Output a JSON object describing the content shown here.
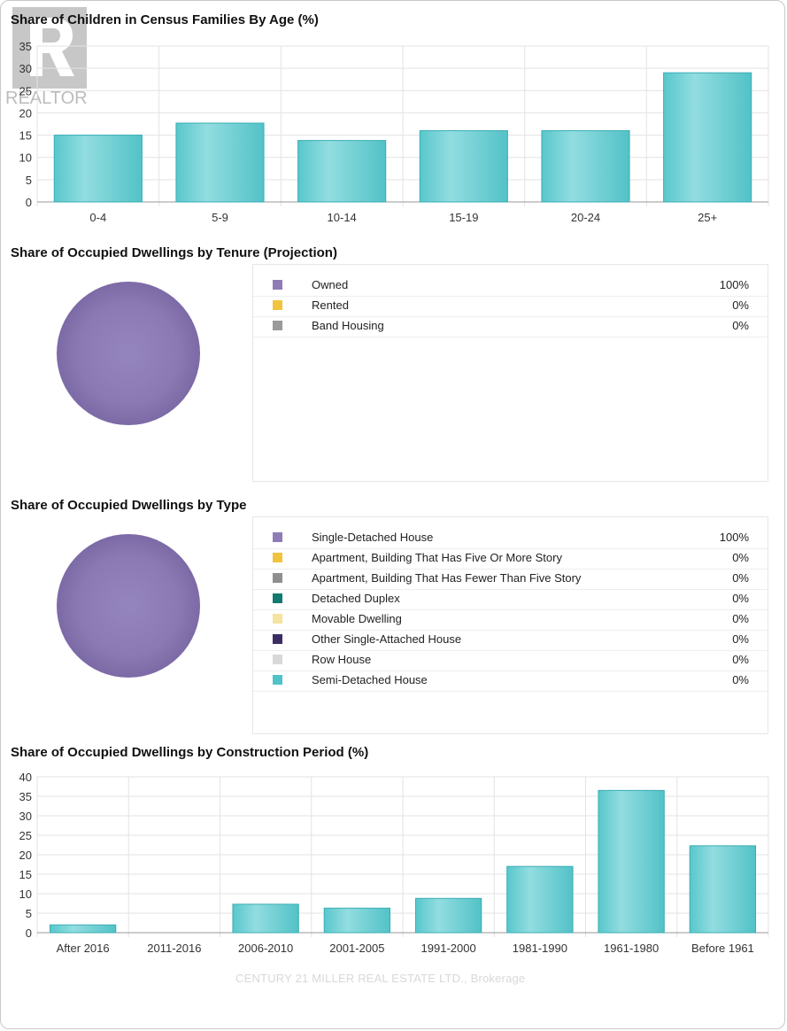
{
  "sections": {
    "age": {
      "title": "Share of Children in Census Families By Age (%)"
    },
    "tenure": {
      "title": "Share of Occupied Dwellings by Tenure (Projection)",
      "legend": [
        {
          "label": "Owned",
          "value": "100%",
          "color": "#8e7cb6"
        },
        {
          "label": "Rented",
          "value": "0%",
          "color": "#f2c43d"
        },
        {
          "label": "Band Housing",
          "value": "0%",
          "color": "#9a9a9a"
        }
      ]
    },
    "type": {
      "title": "Share of Occupied Dwellings by Type",
      "legend": [
        {
          "label": "Single-Detached House",
          "value": "100%",
          "color": "#8e7cb6"
        },
        {
          "label": "Apartment, Building That Has Five Or More Story",
          "value": "0%",
          "color": "#f2c43d"
        },
        {
          "label": "Apartment, Building That Has Fewer Than Five Story",
          "value": "0%",
          "color": "#8f8f8f"
        },
        {
          "label": "Detached Duplex",
          "value": "0%",
          "color": "#127a70"
        },
        {
          "label": "Movable Dwelling",
          "value": "0%",
          "color": "#f6e3a0"
        },
        {
          "label": "Other Single-Attached House",
          "value": "0%",
          "color": "#3b2d64"
        },
        {
          "label": "Row House",
          "value": "0%",
          "color": "#d8d8d8"
        },
        {
          "label": "Semi-Detached House",
          "value": "0%",
          "color": "#4fc3c8"
        }
      ]
    },
    "construction": {
      "title": "Share of Occupied Dwellings by Construction Period (%)"
    }
  },
  "watermark": {
    "logo_text": "REALTOR",
    "footer": "CENTURY 21 MILLER REAL ESTATE LTD., Brokerage"
  },
  "chart_data": [
    {
      "type": "bar",
      "title": "Share of Children in Census Families By Age (%)",
      "categories": [
        "0-4",
        "5-9",
        "10-14",
        "15-19",
        "20-24",
        "25+"
      ],
      "values": [
        15,
        17.7,
        13.8,
        16,
        16,
        29
      ],
      "ylim": [
        0,
        35
      ],
      "yticks": [
        0,
        5,
        10,
        15,
        20,
        25,
        30,
        35
      ],
      "grid": true,
      "color": "#5fcdd1"
    },
    {
      "type": "pie",
      "title": "Share of Occupied Dwellings by Tenure (Projection)",
      "labels": [
        "Owned",
        "Rented",
        "Band Housing"
      ],
      "values": [
        100,
        0,
        0
      ],
      "legend": "right"
    },
    {
      "type": "pie",
      "title": "Share of Occupied Dwellings by Type",
      "labels": [
        "Single-Detached House",
        "Apartment, Building That Has Five Or More Story",
        "Apartment, Building That Has Fewer Than Five Story",
        "Detached Duplex",
        "Movable Dwelling",
        "Other Single-Attached House",
        "Row House",
        "Semi-Detached House"
      ],
      "values": [
        100,
        0,
        0,
        0,
        0,
        0,
        0,
        0
      ],
      "legend": "right"
    },
    {
      "type": "bar",
      "title": "Share of Occupied Dwellings by Construction Period (%)",
      "categories": [
        "After 2016",
        "2011-2016",
        "2006-2010",
        "2001-2005",
        "1991-2000",
        "1981-1990",
        "1961-1980",
        "Before 1961"
      ],
      "values": [
        2,
        0,
        7.3,
        6.3,
        8.8,
        17,
        36.5,
        22.3
      ],
      "ylim": [
        0,
        40
      ],
      "yticks": [
        0,
        5,
        10,
        15,
        20,
        25,
        30,
        35,
        40
      ],
      "grid": true,
      "color": "#5fcdd1"
    }
  ]
}
